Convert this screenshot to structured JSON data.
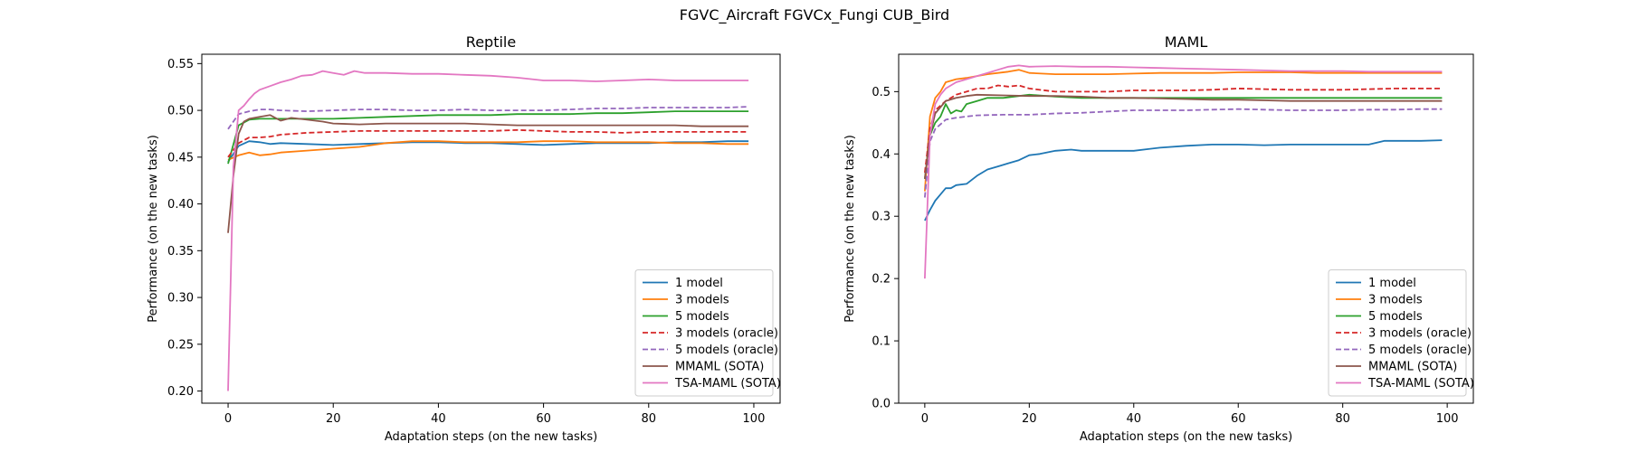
{
  "figure": {
    "suptitle": "FGVC_Aircraft FGVCx_Fungi CUB_Bird"
  },
  "chart_data": [
    {
      "type": "line",
      "title": "Reptile",
      "xlabel": "Adaptation steps (on the new tasks)",
      "ylabel": "Performance (on the new tasks)",
      "xlim": [
        -5,
        105
      ],
      "ylim": [
        0.187,
        0.56
      ],
      "xticks": [
        0,
        20,
        40,
        60,
        80,
        100
      ],
      "yticks": [
        0.2,
        0.25,
        0.3,
        0.35,
        0.4,
        0.45,
        0.5,
        0.55
      ],
      "ytick_decimals": 2,
      "grid": false,
      "legend_position": "lower right",
      "series": [
        {
          "name": "1 model",
          "color": "#1f77b4",
          "dash": "solid",
          "x": [
            0,
            2,
            4,
            6,
            8,
            10,
            15,
            20,
            25,
            30,
            35,
            40,
            45,
            50,
            55,
            60,
            65,
            70,
            75,
            80,
            85,
            90,
            95,
            99
          ],
          "y": [
            0.445,
            0.462,
            0.467,
            0.466,
            0.464,
            0.465,
            0.464,
            0.463,
            0.464,
            0.465,
            0.466,
            0.466,
            0.465,
            0.465,
            0.464,
            0.463,
            0.464,
            0.465,
            0.465,
            0.465,
            0.466,
            0.466,
            0.467,
            0.467
          ]
        },
        {
          "name": "3 models",
          "color": "#ff7f0e",
          "dash": "solid",
          "x": [
            0,
            2,
            4,
            6,
            8,
            10,
            15,
            20,
            25,
            30,
            35,
            40,
            45,
            50,
            55,
            60,
            65,
            70,
            75,
            80,
            85,
            90,
            95,
            99
          ],
          "y": [
            0.447,
            0.452,
            0.455,
            0.452,
            0.453,
            0.455,
            0.457,
            0.459,
            0.461,
            0.465,
            0.467,
            0.467,
            0.466,
            0.466,
            0.466,
            0.467,
            0.467,
            0.466,
            0.466,
            0.466,
            0.465,
            0.465,
            0.464,
            0.464
          ]
        },
        {
          "name": "5 models",
          "color": "#2ca02c",
          "dash": "solid",
          "x": [
            0,
            2,
            4,
            6,
            8,
            10,
            15,
            20,
            25,
            30,
            35,
            40,
            45,
            50,
            55,
            60,
            65,
            70,
            75,
            80,
            85,
            90,
            95,
            99
          ],
          "y": [
            0.443,
            0.484,
            0.49,
            0.491,
            0.491,
            0.491,
            0.491,
            0.491,
            0.492,
            0.493,
            0.494,
            0.495,
            0.495,
            0.495,
            0.496,
            0.496,
            0.496,
            0.497,
            0.497,
            0.498,
            0.499,
            0.499,
            0.499,
            0.499
          ]
        },
        {
          "name": "3 models (oracle)",
          "color": "#d62728",
          "dash": "dashed",
          "x": [
            0,
            2,
            4,
            6,
            8,
            10,
            15,
            20,
            25,
            30,
            35,
            40,
            45,
            50,
            55,
            60,
            65,
            70,
            75,
            80,
            85,
            90,
            95,
            99
          ],
          "y": [
            0.45,
            0.465,
            0.471,
            0.471,
            0.472,
            0.474,
            0.476,
            0.477,
            0.478,
            0.478,
            0.478,
            0.478,
            0.478,
            0.478,
            0.479,
            0.478,
            0.477,
            0.477,
            0.476,
            0.477,
            0.477,
            0.477,
            0.477,
            0.477
          ]
        },
        {
          "name": "5 models (oracle)",
          "color": "#9467bd",
          "dash": "dashed",
          "x": [
            0,
            2,
            4,
            6,
            8,
            10,
            15,
            20,
            25,
            30,
            35,
            40,
            45,
            50,
            55,
            60,
            65,
            70,
            75,
            80,
            85,
            90,
            95,
            99
          ],
          "y": [
            0.48,
            0.496,
            0.499,
            0.501,
            0.501,
            0.5,
            0.499,
            0.5,
            0.501,
            0.501,
            0.5,
            0.5,
            0.501,
            0.5,
            0.5,
            0.5,
            0.501,
            0.502,
            0.502,
            0.503,
            0.503,
            0.503,
            0.503,
            0.504
          ]
        },
        {
          "name": "MMAML (SOTA)",
          "color": "#8c564b",
          "dash": "solid",
          "x": [
            0,
            1,
            2,
            3,
            4,
            6,
            8,
            10,
            12,
            15,
            18,
            20,
            25,
            30,
            35,
            40,
            45,
            50,
            55,
            60,
            65,
            70,
            75,
            80,
            85,
            90,
            95,
            99
          ],
          "y": [
            0.369,
            0.43,
            0.475,
            0.488,
            0.491,
            0.493,
            0.495,
            0.489,
            0.492,
            0.49,
            0.488,
            0.486,
            0.485,
            0.486,
            0.486,
            0.486,
            0.486,
            0.485,
            0.484,
            0.484,
            0.484,
            0.484,
            0.484,
            0.484,
            0.484,
            0.483,
            0.483,
            0.483
          ]
        },
        {
          "name": "TSA-MAML (SOTA)",
          "color": "#e377c2",
          "dash": "solid",
          "x": [
            0,
            1,
            2,
            3,
            4,
            5,
            6,
            8,
            10,
            12,
            14,
            16,
            18,
            20,
            22,
            24,
            26,
            28,
            30,
            35,
            40,
            45,
            50,
            55,
            60,
            65,
            70,
            75,
            80,
            85,
            90,
            95,
            99
          ],
          "y": [
            0.2,
            0.44,
            0.5,
            0.505,
            0.512,
            0.518,
            0.522,
            0.526,
            0.53,
            0.533,
            0.537,
            0.538,
            0.542,
            0.54,
            0.538,
            0.542,
            0.54,
            0.54,
            0.54,
            0.539,
            0.539,
            0.538,
            0.537,
            0.535,
            0.532,
            0.532,
            0.531,
            0.532,
            0.533,
            0.532,
            0.532,
            0.532,
            0.532
          ]
        }
      ]
    },
    {
      "type": "line",
      "title": "MAML",
      "xlabel": "Adaptation steps (on the new tasks)",
      "ylabel": "Performance (on the new tasks)",
      "xlim": [
        -5,
        105
      ],
      "ylim": [
        0.0,
        0.56
      ],
      "xticks": [
        0,
        20,
        40,
        60,
        80,
        100
      ],
      "yticks": [
        0.0,
        0.1,
        0.2,
        0.3,
        0.4,
        0.5
      ],
      "ytick_decimals": 1,
      "grid": false,
      "legend_position": "lower right",
      "series": [
        {
          "name": "1 model",
          "color": "#1f77b4",
          "dash": "solid",
          "x": [
            0,
            1,
            2,
            3,
            4,
            5,
            6,
            8,
            10,
            12,
            14,
            16,
            18,
            20,
            22,
            25,
            28,
            30,
            35,
            40,
            45,
            50,
            55,
            60,
            65,
            70,
            75,
            80,
            85,
            88,
            90,
            95,
            99
          ],
          "y": [
            0.293,
            0.31,
            0.325,
            0.335,
            0.345,
            0.345,
            0.35,
            0.352,
            0.365,
            0.375,
            0.38,
            0.385,
            0.39,
            0.398,
            0.4,
            0.405,
            0.407,
            0.405,
            0.405,
            0.405,
            0.41,
            0.413,
            0.415,
            0.415,
            0.414,
            0.415,
            0.415,
            0.415,
            0.415,
            0.421,
            0.421,
            0.421,
            0.422
          ]
        },
        {
          "name": "3 models",
          "color": "#ff7f0e",
          "dash": "solid",
          "x": [
            0,
            1,
            2,
            3,
            4,
            6,
            8,
            10,
            12,
            14,
            16,
            18,
            20,
            25,
            30,
            35,
            40,
            45,
            50,
            55,
            60,
            65,
            70,
            75,
            80,
            85,
            90,
            95,
            99
          ],
          "y": [
            0.34,
            0.46,
            0.49,
            0.5,
            0.515,
            0.52,
            0.522,
            0.525,
            0.528,
            0.53,
            0.532,
            0.535,
            0.53,
            0.528,
            0.528,
            0.528,
            0.529,
            0.53,
            0.53,
            0.53,
            0.531,
            0.531,
            0.531,
            0.53,
            0.53,
            0.53,
            0.53,
            0.53,
            0.53
          ]
        },
        {
          "name": "5 models",
          "color": "#2ca02c",
          "dash": "solid",
          "x": [
            0,
            1,
            2,
            3,
            4,
            5,
            6,
            7,
            8,
            10,
            12,
            15,
            20,
            25,
            30,
            35,
            40,
            45,
            50,
            55,
            60,
            65,
            70,
            75,
            80,
            85,
            90,
            95,
            99
          ],
          "y": [
            0.36,
            0.43,
            0.45,
            0.46,
            0.48,
            0.465,
            0.47,
            0.468,
            0.48,
            0.485,
            0.49,
            0.49,
            0.495,
            0.492,
            0.49,
            0.49,
            0.49,
            0.49,
            0.49,
            0.49,
            0.49,
            0.49,
            0.49,
            0.49,
            0.49,
            0.49,
            0.49,
            0.49,
            0.49
          ]
        },
        {
          "name": "3 models (oracle)",
          "color": "#d62728",
          "dash": "dashed",
          "x": [
            0,
            1,
            2,
            4,
            6,
            8,
            10,
            12,
            14,
            16,
            18,
            20,
            25,
            30,
            35,
            40,
            45,
            50,
            55,
            60,
            65,
            70,
            75,
            80,
            85,
            90,
            95,
            99
          ],
          "y": [
            0.37,
            0.44,
            0.47,
            0.485,
            0.495,
            0.5,
            0.505,
            0.505,
            0.51,
            0.508,
            0.51,
            0.505,
            0.5,
            0.5,
            0.5,
            0.502,
            0.502,
            0.502,
            0.503,
            0.505,
            0.504,
            0.503,
            0.503,
            0.503,
            0.504,
            0.505,
            0.505,
            0.505
          ]
        },
        {
          "name": "5 models (oracle)",
          "color": "#9467bd",
          "dash": "dashed",
          "x": [
            0,
            1,
            2,
            4,
            6,
            8,
            10,
            15,
            20,
            25,
            30,
            35,
            40,
            45,
            50,
            55,
            60,
            65,
            70,
            75,
            80,
            85,
            90,
            95,
            99
          ],
          "y": [
            0.33,
            0.42,
            0.44,
            0.455,
            0.458,
            0.46,
            0.462,
            0.463,
            0.463,
            0.465,
            0.466,
            0.468,
            0.47,
            0.47,
            0.47,
            0.471,
            0.472,
            0.471,
            0.47,
            0.47,
            0.47,
            0.471,
            0.471,
            0.472,
            0.472
          ]
        },
        {
          "name": "MMAML (SOTA)",
          "color": "#8c564b",
          "dash": "solid",
          "x": [
            0,
            1,
            2,
            4,
            6,
            8,
            10,
            15,
            20,
            25,
            30,
            35,
            40,
            45,
            50,
            55,
            60,
            65,
            70,
            75,
            80,
            85,
            90,
            95,
            99
          ],
          "y": [
            0.36,
            0.43,
            0.465,
            0.485,
            0.49,
            0.493,
            0.495,
            0.494,
            0.493,
            0.493,
            0.492,
            0.49,
            0.49,
            0.489,
            0.488,
            0.487,
            0.487,
            0.486,
            0.485,
            0.485,
            0.485,
            0.485,
            0.485,
            0.485,
            0.485
          ]
        },
        {
          "name": "TSA-MAML (SOTA)",
          "color": "#e377c2",
          "dash": "solid",
          "x": [
            0,
            1,
            2,
            3,
            4,
            6,
            8,
            10,
            12,
            14,
            16,
            18,
            20,
            25,
            30,
            35,
            40,
            45,
            50,
            55,
            60,
            65,
            70,
            75,
            80,
            85,
            90,
            95,
            99
          ],
          "y": [
            0.2,
            0.43,
            0.48,
            0.495,
            0.505,
            0.515,
            0.52,
            0.525,
            0.53,
            0.535,
            0.54,
            0.542,
            0.54,
            0.541,
            0.54,
            0.54,
            0.539,
            0.538,
            0.537,
            0.536,
            0.535,
            0.534,
            0.533,
            0.533,
            0.533,
            0.532,
            0.532,
            0.532,
            0.532
          ]
        }
      ]
    }
  ]
}
